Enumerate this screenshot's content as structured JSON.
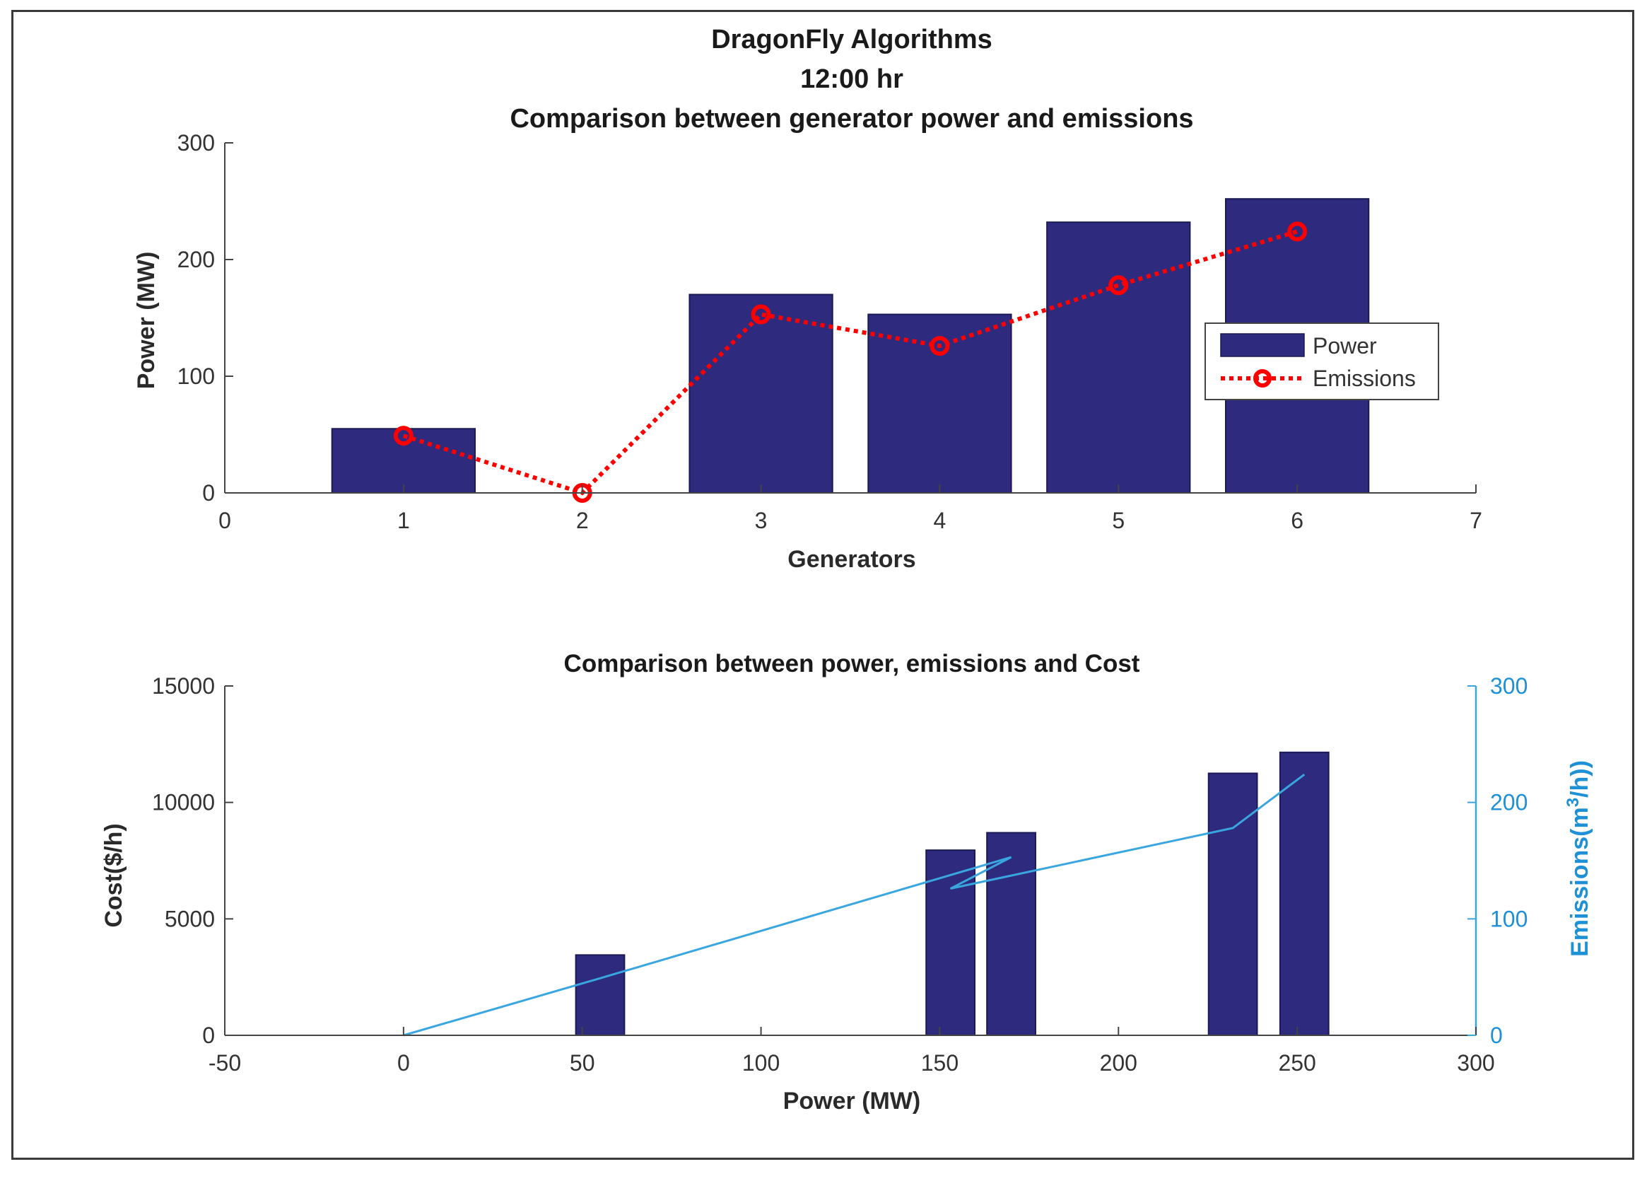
{
  "chart_data": [
    {
      "type": "bar",
      "title": [
        "DragonFly Algorithms",
        "12:00 hr",
        "Comparison between generator power and emissions"
      ],
      "xlabel": "Generators",
      "ylabel": "Power (MW)",
      "xlim": [
        0,
        7
      ],
      "ylim": [
        0,
        300
      ],
      "xticks": [
        "0",
        "1",
        "2",
        "3",
        "4",
        "5",
        "6",
        "7"
      ],
      "yticks": [
        "0",
        "100",
        "200",
        "300"
      ],
      "categories": [
        1,
        2,
        3,
        4,
        5,
        6
      ],
      "series": [
        {
          "name": "Power",
          "type": "bar",
          "color": "#2e2a7e",
          "values": [
            55,
            0,
            170,
            153,
            232,
            252
          ]
        },
        {
          "name": "Emissions",
          "type": "line",
          "style": "dotted",
          "marker": "circle",
          "color": "#ff0000",
          "values": [
            49,
            0,
            153,
            126,
            178,
            224
          ]
        }
      ],
      "legend": {
        "placement": "right",
        "entries": [
          "Power",
          "Emissions"
        ]
      },
      "grid": false
    },
    {
      "type": "bar",
      "title": "Comparison between power, emissions and Cost",
      "xlabel": "Power (MW)",
      "ylabel": "Cost($/h)",
      "y2label_prefix": "Emissions(m",
      "y2label_sup": "3",
      "y2label_suffix": "/h))",
      "xlim": [
        -50,
        300
      ],
      "ylim": [
        0,
        15000
      ],
      "y2lim": [
        0,
        300
      ],
      "xticks": [
        "-50",
        "0",
        "50",
        "100",
        "150",
        "200",
        "250",
        "300"
      ],
      "yticks": [
        "0",
        "5000",
        "10000",
        "15000"
      ],
      "y2ticks": [
        "0",
        "100",
        "200",
        "300"
      ],
      "series": [
        {
          "name": "Cost",
          "type": "bar",
          "color": "#2e2a7e",
          "x": [
            55,
            153,
            170,
            232,
            252
          ],
          "values": [
            3450,
            7950,
            8700,
            11250,
            12150
          ]
        },
        {
          "name": "Emissions",
          "type": "line",
          "axis": "right",
          "color": "#3aa6e0",
          "x": [
            0,
            55,
            170,
            153,
            232,
            252
          ],
          "values": [
            0,
            49,
            153,
            126,
            178,
            224
          ]
        }
      ],
      "grid": false
    }
  ]
}
